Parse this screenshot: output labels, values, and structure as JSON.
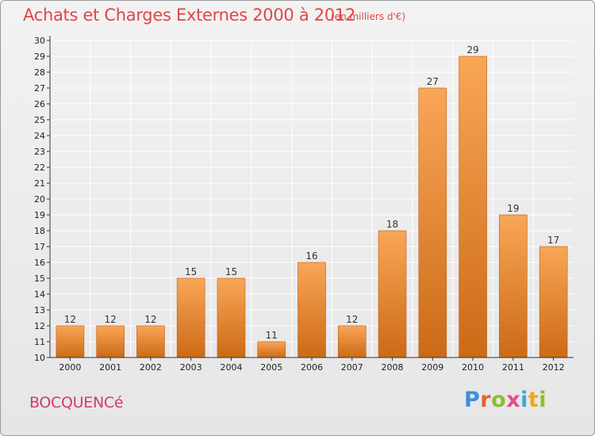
{
  "header": {
    "title": "Achats et Charges Externes 2000 à 2012",
    "unit": "(en milliers d'€)"
  },
  "footer": {
    "commune": "BOCQUENCé",
    "logo_letters": [
      "P",
      "r",
      "o",
      "x",
      "i",
      "t",
      "i"
    ],
    "logo_colors": [
      "#3a8fd9",
      "#e2632a",
      "#8bbf2c",
      "#e84a8c",
      "#3aa7dd",
      "#f2a51e",
      "#8bbf2c"
    ]
  },
  "colors": {
    "bar_top": "#f9a657",
    "bar_bottom": "#cc6a16",
    "bar_edge": "#b9601a",
    "grid": "#ffffff",
    "axis": "#333333"
  },
  "chart_data": {
    "type": "bar",
    "categories": [
      "2000",
      "2001",
      "2002",
      "2003",
      "2004",
      "2005",
      "2006",
      "2007",
      "2008",
      "2009",
      "2010",
      "2011",
      "2012"
    ],
    "values": [
      12,
      12,
      12,
      15,
      15,
      11,
      16,
      12,
      18,
      27,
      29,
      19,
      17
    ],
    "ylim": [
      10,
      30
    ],
    "yticks": [
      10,
      11,
      12,
      13,
      14,
      15,
      16,
      17,
      18,
      19,
      20,
      21,
      22,
      23,
      24,
      25,
      26,
      27,
      28,
      29,
      30
    ],
    "grid": true,
    "data_labels": true
  }
}
